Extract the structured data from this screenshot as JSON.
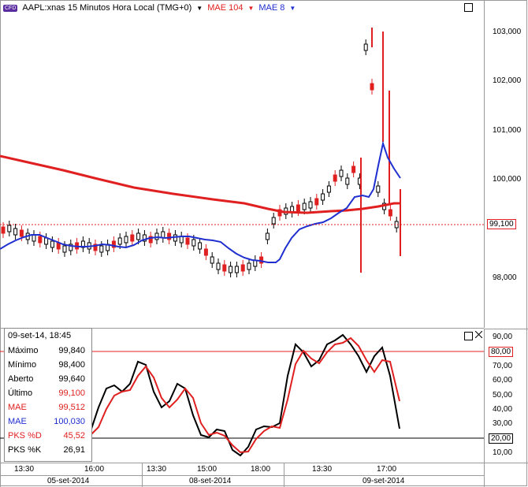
{
  "header": {
    "cfd_badge": "CFD",
    "symbol": "AAPL:xnas 15 Minutos Hora Local (TMG+0)",
    "ind1": "MAE 104",
    "ind2": "MAE 8"
  },
  "colors": {
    "price_up": "#000000",
    "price_down": "#e02020",
    "mae104": "#e02020",
    "mae8": "#1f2fd0",
    "pks_d": "#e02020",
    "pks_k": "#000000"
  },
  "price_axis": {
    "ticks": [
      "103,000",
      "102,000",
      "101,000",
      "100,000",
      "98,000"
    ],
    "last_price": "99,100"
  },
  "osc_axis": {
    "ticks": [
      "90,00",
      "80,00",
      "70,00",
      "60,00",
      "50,00",
      "40,00",
      "30,00",
      "20,00",
      "10,00"
    ]
  },
  "time_axis": {
    "times": [
      "13:30",
      "16:00",
      "13:30",
      "15:00",
      "18:00",
      "13:30",
      "17:00"
    ],
    "dates": [
      "05-set-2014",
      "08-set-2014",
      "09-set-2014"
    ]
  },
  "legend": {
    "date": "09-set-14, 18:45",
    "rows": [
      {
        "label": "Máximo",
        "value": "99,840"
      },
      {
        "label": "Mínimo",
        "value": "98,400"
      },
      {
        "label": "Aberto",
        "value": "99,640"
      },
      {
        "label": "Último",
        "value": "99,100"
      },
      {
        "label": "MAE",
        "value": "99,512"
      },
      {
        "label": "MAE",
        "value": "100,030"
      },
      {
        "label": "PKS %D",
        "value": "45,52"
      },
      {
        "label": "PKS %K",
        "value": "26,91"
      }
    ]
  }
}
